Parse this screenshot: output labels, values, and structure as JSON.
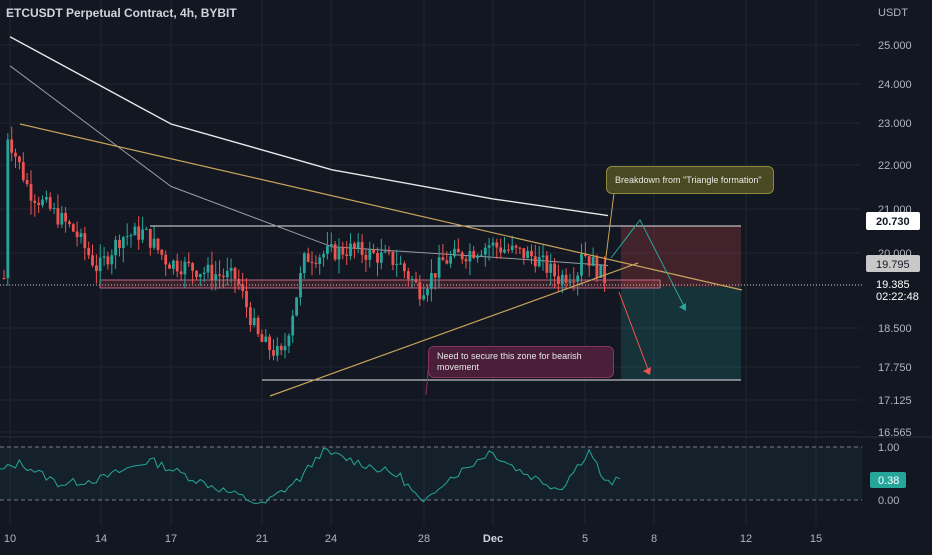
{
  "title": "ETCUSDT Perpetual Contract, 4h, BYBIT",
  "colors": {
    "background": "#131722",
    "bull": "#26a69a",
    "bear": "#ef5350",
    "trendline": "#c9a45c",
    "ma_long": "#e6e6e6",
    "ma_short": "#9a9aa2",
    "zone_line": "#ffffff",
    "rsi": "#26a69a",
    "axis_text": "#b2b5be"
  },
  "axis": {
    "currency": "USDT",
    "y_ticks": [
      "25.000",
      "24.000",
      "23.000",
      "22.000",
      "21.000",
      "20.000",
      "18.500",
      "17.750",
      "17.125",
      "16.565"
    ],
    "x_ticks": [
      "10",
      "14",
      "17",
      "21",
      "24",
      "28",
      "Dec",
      "5",
      "8",
      "12",
      "15"
    ]
  },
  "price_labels": {
    "upper_zone": "20.730",
    "resistance": "19.795",
    "current": "19.385",
    "countdown": "02:22:48"
  },
  "rsi_panel": {
    "levels": [
      "1.00",
      "0.00"
    ],
    "value": "0.38"
  },
  "annotations": {
    "breakdown": "Breakdown from \"Triangle formation\"",
    "secure_zone": "Need to secure this zone for bearish movement"
  },
  "chart_data": {
    "type": "candlestick",
    "symbol": "ETCUSDT",
    "timeframe": "4h",
    "ylim": [
      16.4,
      25.6
    ],
    "indicator_ylim": [
      -0.15,
      1.05
    ],
    "ohlc_waypoints": [
      {
        "x": "Nov 10",
        "price": 20.6
      },
      {
        "x": "Nov 10",
        "price": 22.95
      },
      {
        "x": "Nov 11",
        "price": 21.5
      },
      {
        "x": "Nov 13",
        "price": 20.5
      },
      {
        "x": "Nov 14",
        "price": 19.6
      },
      {
        "x": "Nov 15",
        "price": 20.4
      },
      {
        "x": "Nov 16",
        "price": 20.5
      },
      {
        "x": "Nov 17",
        "price": 19.8
      },
      {
        "x": "Nov 19",
        "price": 19.5
      },
      {
        "x": "Nov 20",
        "price": 19.4
      },
      {
        "x": "Nov 21",
        "price": 17.9
      },
      {
        "x": "Nov 22",
        "price": 17.5
      },
      {
        "x": "Nov 23",
        "price": 19.9
      },
      {
        "x": "Nov 25",
        "price": 20.1
      },
      {
        "x": "Nov 27",
        "price": 19.8
      },
      {
        "x": "Nov 28",
        "price": 19.1
      },
      {
        "x": "Nov 29",
        "price": 19.8
      },
      {
        "x": "Dec 1",
        "price": 20.2
      },
      {
        "x": "Dec 3",
        "price": 19.9
      },
      {
        "x": "Dec 4",
        "price": 19.4
      },
      {
        "x": "Dec 5",
        "price": 19.6
      },
      {
        "x": "Dec 5",
        "price": 20.1
      },
      {
        "x": "Dec 6",
        "price": 19.4
      }
    ],
    "horizontal_levels": [
      20.73,
      19.5,
      19.4,
      17.62
    ],
    "triangle": {
      "upper": [
        {
          "x": "Nov 10",
          "y": 22.95
        },
        {
          "x": "Dec 12",
          "y": 19.35
        }
      ],
      "lower": [
        {
          "x": "Nov 21",
          "y": 17.2
        },
        {
          "x": "Dec 6",
          "y": 19.8
        }
      ]
    },
    "moving_averages": [
      {
        "points": [
          {
            "x": "Nov 10",
            "y": 25.2
          },
          {
            "x": "Nov 17",
            "y": 23.1
          },
          {
            "x": "Nov 24",
            "y": 22.0
          },
          {
            "x": "Dec 1",
            "y": 21.3
          },
          {
            "x": "Dec 6",
            "y": 20.9
          }
        ]
      },
      {
        "points": [
          {
            "x": "Nov 10",
            "y": 24.5
          },
          {
            "x": "Nov 17",
            "y": 21.6
          },
          {
            "x": "Nov 24",
            "y": 20.15
          },
          {
            "x": "Dec 1",
            "y": 19.9
          },
          {
            "x": "Dec 6",
            "y": 19.7
          }
        ]
      }
    ],
    "position": {
      "entry": 19.385,
      "stop": 20.73,
      "target": 17.62
    },
    "rsi_last": 0.38
  }
}
